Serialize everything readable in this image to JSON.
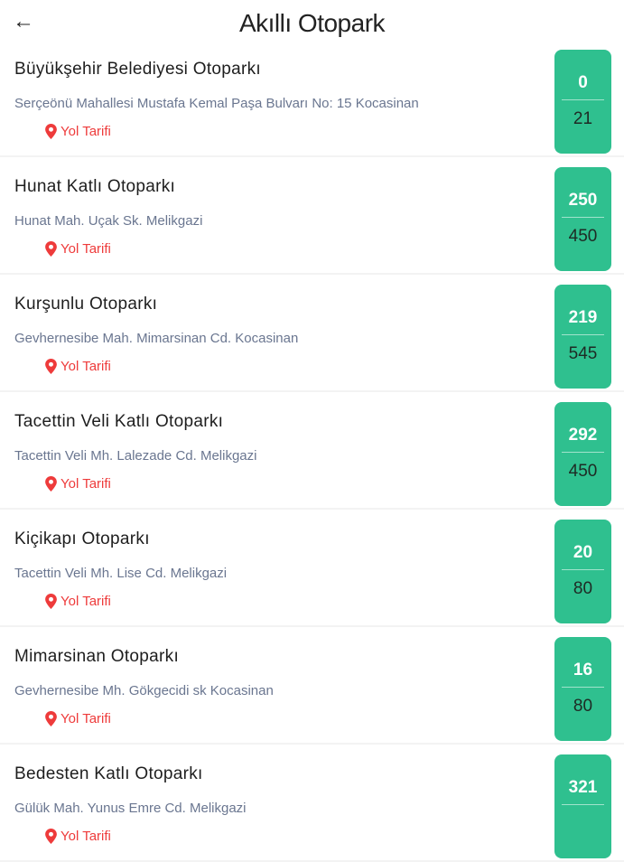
{
  "header": {
    "title": "Akıllı Otopark",
    "back_icon": "arrow-left-icon"
  },
  "colors": {
    "accent": "#2fc08f",
    "link": "#ee3b3b",
    "address": "#6a7690"
  },
  "direction_label": "Yol Tarifi",
  "parkings": [
    {
      "name": "Büyükşehir Belediyesi Otoparkı",
      "address": "Serçeönü Mahallesi Mustafa Kemal Paşa Bulvarı No: 15 Kocasinan",
      "free": "0",
      "total": "21"
    },
    {
      "name": "Hunat Katlı Otoparkı",
      "address": "Hunat Mah. Uçak Sk. Melikgazi",
      "free": "250",
      "total": "450"
    },
    {
      "name": "Kurşunlu Otoparkı",
      "address": "Gevhernesibe Mah. Mimarsinan Cd. Kocasinan",
      "free": "219",
      "total": "545"
    },
    {
      "name": "Tacettin Veli Katlı Otoparkı",
      "address": "Tacettin Veli Mh. Lalezade Cd. Melikgazi",
      "free": "292",
      "total": "450"
    },
    {
      "name": "Kiçikapı Otoparkı",
      "address": "Tacettin Veli Mh. Lise Cd. Melikgazi",
      "free": "20",
      "total": "80"
    },
    {
      "name": "Mimarsinan Otoparkı",
      "address": "Gevhernesibe Mh. Gökgecidi sk Kocasinan",
      "free": "16",
      "total": "80"
    },
    {
      "name": "Bedesten Katlı Otoparkı",
      "address": "Gülük Mah. Yunus Emre Cd. Melikgazi",
      "free": "321",
      "total": ""
    }
  ]
}
